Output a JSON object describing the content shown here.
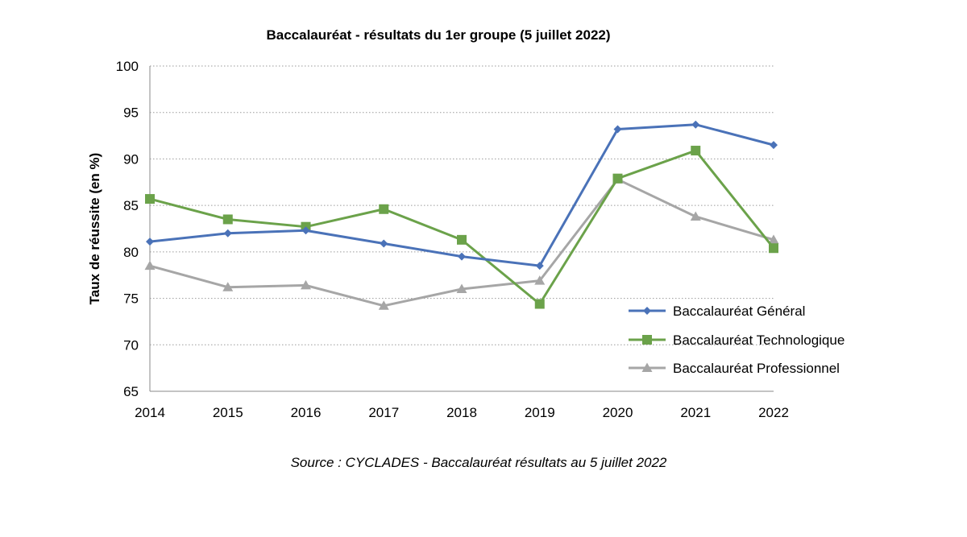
{
  "source_note": "Source : CYCLADES - Baccalauréat résultats au 5 juillet 2022",
  "chart_data": {
    "type": "line",
    "title": "Baccalauréat - résultats du 1er groupe (5 juillet 2022)",
    "xlabel": "",
    "ylabel": "Taux de réussite (en %)",
    "categories": [
      "2014",
      "2015",
      "2016",
      "2017",
      "2018",
      "2019",
      "2020",
      "2021",
      "2022"
    ],
    "ylim": [
      65,
      100
    ],
    "yticks": [
      "65",
      "70",
      "75",
      "80",
      "85",
      "90",
      "95",
      "100"
    ],
    "grid": "horizontal dotted",
    "legend_position": "right",
    "series": [
      {
        "name": "Baccalauréat Général",
        "color": "#4a72b8",
        "marker": "diamond",
        "values": [
          81.1,
          82.0,
          82.3,
          80.9,
          79.5,
          78.5,
          93.2,
          93.7,
          91.5
        ]
      },
      {
        "name": "Baccalauréat Technologique",
        "color": "#6ba24a",
        "marker": "square",
        "values": [
          85.7,
          83.5,
          82.7,
          84.6,
          81.3,
          74.4,
          87.9,
          90.9,
          80.4
        ]
      },
      {
        "name": "Baccalauréat Professionnel",
        "color": "#a6a6a6",
        "marker": "triangle",
        "values": [
          78.5,
          76.2,
          76.4,
          74.2,
          76.0,
          76.9,
          87.8,
          83.8,
          81.3
        ]
      }
    ]
  }
}
